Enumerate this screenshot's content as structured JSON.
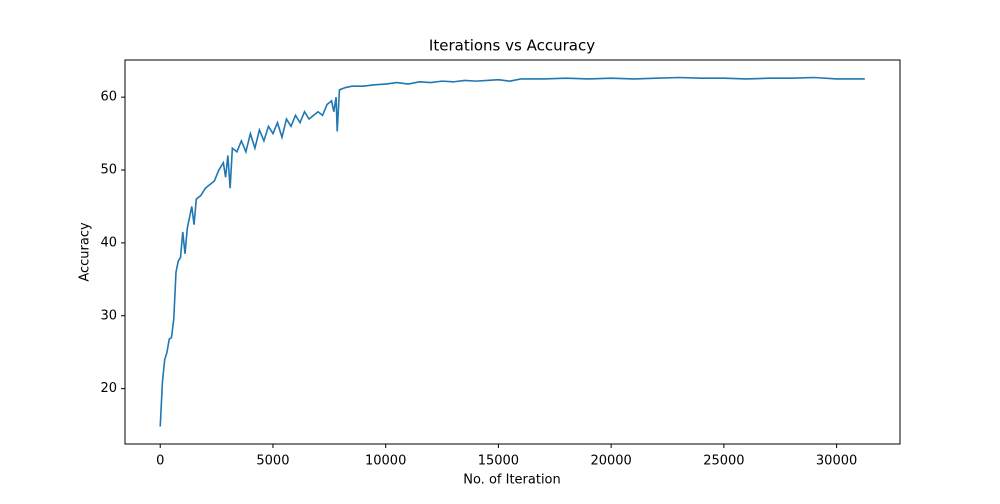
{
  "chart_data": {
    "type": "line",
    "title": "Iterations vs Accuracy",
    "x_label": "No. of Iteration",
    "y_label": "Accuracy",
    "x": [
      0,
      100,
      200,
      300,
      400,
      500,
      600,
      700,
      800,
      900,
      1000,
      1100,
      1200,
      1300,
      1400,
      1500,
      1600,
      1800,
      2000,
      2200,
      2400,
      2600,
      2800,
      2900,
      3000,
      3100,
      3200,
      3400,
      3600,
      3800,
      4000,
      4200,
      4400,
      4600,
      4800,
      5000,
      5200,
      5400,
      5600,
      5800,
      6000,
      6200,
      6400,
      6600,
      6800,
      7000,
      7200,
      7400,
      7600,
      7700,
      7800,
      7850,
      7950,
      8200,
      8500,
      9000,
      9500,
      10000,
      10500,
      11000,
      11500,
      12000,
      12500,
      13000,
      13500,
      14000,
      14500,
      15000,
      15500,
      16000,
      17000,
      18000,
      19000,
      20000,
      21000,
      22000,
      23000,
      24000,
      25000,
      26000,
      27000,
      28000,
      29000,
      30000,
      31250
    ],
    "series": [
      {
        "name": "Accuracy",
        "color": "#1f77b4",
        "values": [
          14.8,
          21,
          24,
          25,
          26.8,
          27,
          29.5,
          36,
          37.5,
          38,
          41.5,
          38.5,
          42,
          43.5,
          45,
          42.5,
          46,
          46.5,
          47.5,
          48,
          48.5,
          50,
          51,
          49,
          52,
          47.5,
          53,
          52.5,
          54,
          52.5,
          55,
          53,
          55.5,
          54,
          56,
          55,
          56.5,
          54.5,
          57,
          56,
          57.5,
          56.5,
          58,
          57,
          57.5,
          58,
          57.5,
          59,
          59.5,
          58,
          60,
          55.3,
          61,
          61.3,
          61.5,
          61.5,
          61.7,
          61.8,
          62,
          61.8,
          62.1,
          62,
          62.2,
          62.1,
          62.3,
          62.2,
          62.3,
          62.4,
          62.2,
          62.5,
          62.5,
          62.6,
          62.5,
          62.6,
          62.5,
          62.6,
          62.7,
          62.6,
          62.6,
          62.5,
          62.6,
          62.6,
          62.7,
          62.5,
          62.5
        ]
      }
    ],
    "xlim": [
      -1562,
      32812
    ],
    "ylim": [
      12.4,
      65.1
    ],
    "xticks": [
      0,
      5000,
      10000,
      15000,
      20000,
      25000,
      30000
    ],
    "yticks": [
      20,
      30,
      40,
      50,
      60
    ]
  }
}
